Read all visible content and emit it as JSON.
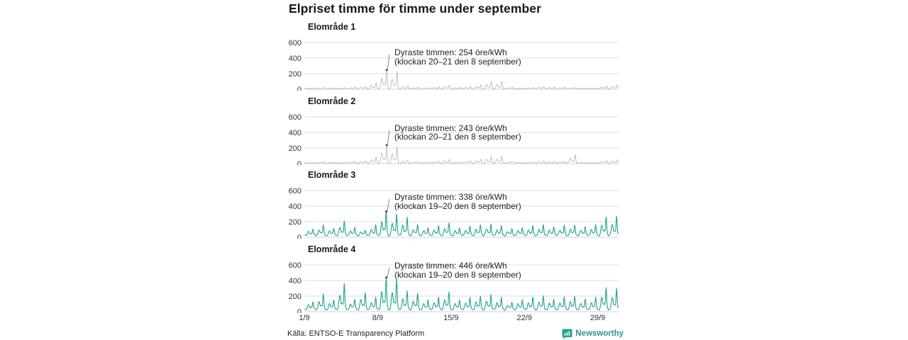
{
  "title": "Elpriset timme för timme under september",
  "source": "Källa: ENTSO-E Transparency Platform",
  "brand": {
    "name": "Newsworthy",
    "icon": "bar-chart-speech-bubble",
    "color": "#2aa090",
    "text_color": "#2b948a"
  },
  "axis": {
    "y_ticks": [
      600,
      400,
      200,
      0
    ],
    "x_ticks": [
      "1/9",
      "8/9",
      "15/9",
      "22/9",
      "29/9"
    ],
    "x_tick_days": [
      0,
      7,
      14,
      21,
      28
    ],
    "days": 30,
    "unit": "öre/kWh"
  },
  "layout_colors": {
    "gridline": "#dbdcdf",
    "baseline": "#cfd0d4",
    "tick_text": "#333333",
    "annotation_marker": "#3a3a3a"
  },
  "chart_data": [
    {
      "type": "line",
      "name": "Elområde 1",
      "color": "#b8bbc3",
      "unit": "öre/kWh",
      "ylim": [
        0,
        600
      ],
      "x_range": [
        "1/9",
        "30/9"
      ],
      "peak_day_index": 7,
      "peak_hour": 20,
      "base": 9,
      "daily_peaks": [
        18,
        22,
        15,
        18,
        28,
        38,
        85,
        254,
        230,
        45,
        26,
        22,
        32,
        55,
        24,
        40,
        60,
        100,
        105,
        26,
        18,
        22,
        38,
        32,
        28,
        22,
        18,
        16,
        45,
        55
      ],
      "annotation": {
        "line1": "Dyraste timmen: 254 öre/kWh",
        "line2": "(klockan 20–21 den 8 september)",
        "value": 254
      }
    },
    {
      "type": "line",
      "name": "Elområde 2",
      "color": "#b8bbc3",
      "unit": "öre/kWh",
      "ylim": [
        0,
        600
      ],
      "x_range": [
        "1/9",
        "30/9"
      ],
      "peak_day_index": 7,
      "peak_hour": 20,
      "base": 9,
      "daily_peaks": [
        18,
        22,
        15,
        18,
        28,
        38,
        85,
        243,
        225,
        45,
        26,
        22,
        32,
        55,
        24,
        40,
        60,
        95,
        100,
        26,
        18,
        22,
        38,
        32,
        28,
        120,
        18,
        16,
        40,
        50
      ],
      "annotation": {
        "line1": "Dyraste timmen: 243 öre/kWh",
        "line2": "(klockan 20–21 den 8 september)",
        "value": 243
      }
    },
    {
      "type": "line",
      "name": "Elområde 3",
      "color": "#20a192",
      "unit": "öre/kWh",
      "ylim": [
        0,
        600
      ],
      "x_range": [
        "1/9",
        "30/9"
      ],
      "peak_day_index": 7,
      "peak_hour": 19,
      "base": 32,
      "daily_peaks": [
        110,
        155,
        120,
        210,
        125,
        95,
        160,
        338,
        300,
        260,
        160,
        125,
        150,
        180,
        125,
        140,
        160,
        170,
        150,
        110,
        130,
        150,
        160,
        140,
        150,
        160,
        140,
        160,
        260,
        270
      ],
      "annotation": {
        "line1": "Dyraste timmen: 338 öre/kWh",
        "line2": "(klockan 19–20 den 8 september)",
        "value": 338
      }
    },
    {
      "type": "line",
      "name": "Elområde 4",
      "color": "#20a192",
      "unit": "öre/kWh",
      "ylim": [
        0,
        600
      ],
      "x_range": [
        "1/9",
        "30/9"
      ],
      "peak_day_index": 7,
      "peak_hour": 19,
      "base": 36,
      "daily_peaks": [
        130,
        220,
        155,
        360,
        155,
        250,
        185,
        446,
        420,
        270,
        230,
        155,
        185,
        250,
        155,
        180,
        200,
        220,
        185,
        120,
        155,
        185,
        200,
        165,
        185,
        200,
        165,
        185,
        310,
        300
      ],
      "annotation": {
        "line1": "Dyraste timmen: 446 öre/kWh",
        "line2": "(klockan 19–20 den 8 september)",
        "value": 446
      }
    }
  ]
}
